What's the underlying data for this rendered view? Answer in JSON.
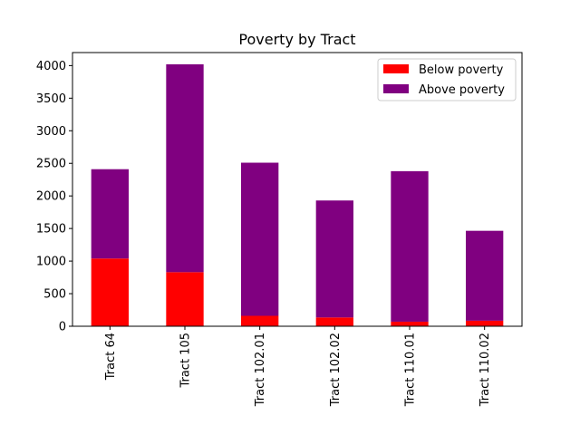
{
  "chart_data": {
    "type": "bar",
    "stacked": true,
    "title": "Poverty by Tract",
    "xlabel": "",
    "ylabel": "",
    "categories": [
      "Tract 64",
      "Tract 105",
      "Tract 102.01",
      "Tract 102.02",
      "Tract 110.01",
      "Tract 110.02"
    ],
    "series": [
      {
        "name": "Below poverty",
        "color": "#ff0000",
        "values": [
          1040,
          830,
          160,
          135,
          70,
          85
        ]
      },
      {
        "name": "Above poverty",
        "color": "#800080",
        "values": [
          1370,
          3190,
          2350,
          1795,
          2310,
          1380
        ]
      }
    ],
    "ylim": [
      0,
      4200
    ],
    "yticks": [
      0,
      500,
      1000,
      1500,
      2000,
      2500,
      3000,
      3500,
      4000
    ],
    "grid": false,
    "legend_position": "top-right"
  }
}
